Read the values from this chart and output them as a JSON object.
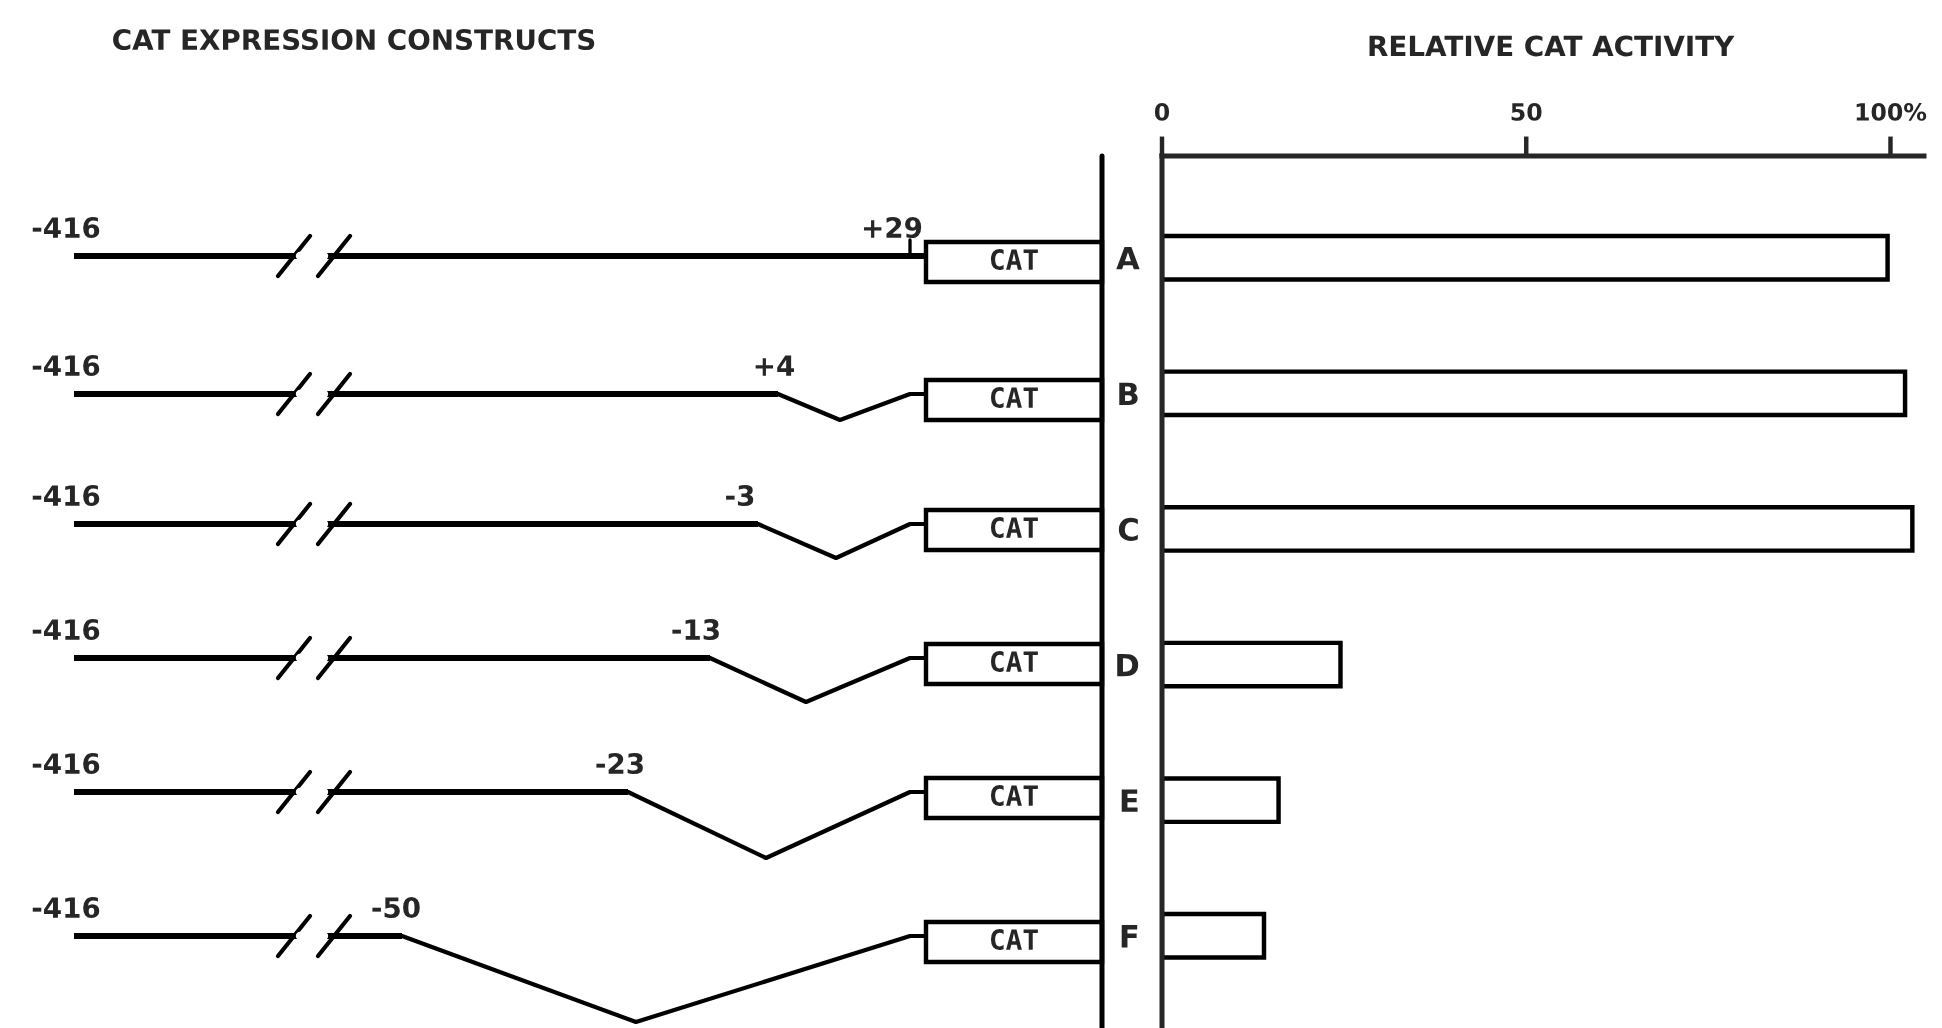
{
  "chart_data": {
    "type": "bar",
    "orientation": "horizontal",
    "title": "RELATIVE CAT ACTIVITY",
    "categories": [
      "A",
      "B",
      "C",
      "D",
      "E",
      "F"
    ],
    "values": [
      99.6,
      102,
      103,
      24.5,
      16,
      14
    ],
    "color": "#ffffff",
    "xlim": [
      0,
      104.6
    ],
    "xticks": [
      0,
      50,
      {
        "value": 100,
        "label": "100%"
      }
    ],
    "grid": false,
    "annotations": [
      "CAT EXPRESSION CONSTRUCTS",
      "-416",
      "+29",
      "CAT",
      "-416",
      "+4",
      "CAT",
      "-416",
      "-3",
      "CAT",
      "-416",
      "-13",
      "CAT",
      "-416",
      "-23",
      "CAT",
      "-416",
      "-50",
      "CAT"
    ]
  }
}
